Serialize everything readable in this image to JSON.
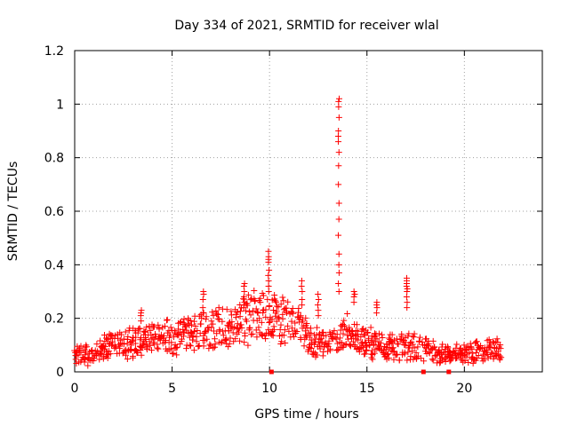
{
  "chart_data": {
    "type": "scatter",
    "title": "Day 334 of 2021, SRMTID for receiver wlal",
    "xlabel": "GPS time / hours",
    "ylabel": "SRMTID / TECUs",
    "xlim": [
      0,
      24
    ],
    "ylim": [
      0,
      1.2
    ],
    "xticks": [
      0,
      5,
      10,
      15,
      20
    ],
    "xtick_labels": [
      "0",
      "5",
      "10",
      "15",
      "20"
    ],
    "yticks": [
      0,
      0.2,
      0.4,
      0.6,
      0.8,
      1,
      1.2
    ],
    "ytick_labels": [
      "0",
      "0.2",
      "0.4",
      "0.6",
      "0.8",
      "1",
      "1.2"
    ],
    "grid": true,
    "marker": "+",
    "color": "#ff0000",
    "series": [
      {
        "name": "SRMTID",
        "envelope_hours": [
          0,
          1,
          2,
          3,
          4,
          5,
          6,
          7,
          8,
          9,
          10,
          11,
          12,
          13,
          13.5,
          14,
          15,
          16,
          17,
          18,
          19,
          20,
          21,
          22
        ],
        "baseline_tecu": [
          0.06,
          0.07,
          0.1,
          0.11,
          0.13,
          0.13,
          0.15,
          0.16,
          0.17,
          0.2,
          0.2,
          0.18,
          0.13,
          0.1,
          0.12,
          0.16,
          0.11,
          0.09,
          0.1,
          0.08,
          0.06,
          0.07,
          0.08,
          0.09
        ],
        "spikes": [
          {
            "x": 13.55,
            "y": [
              1.02,
              1.01,
              0.99,
              0.95,
              0.9,
              0.88,
              0.86,
              0.82,
              0.77,
              0.7,
              0.63,
              0.57,
              0.51,
              0.44,
              0.4,
              0.37,
              0.33,
              0.3
            ]
          },
          {
            "x": 9.95,
            "y": [
              0.45,
              0.43,
              0.42,
              0.41,
              0.38,
              0.36,
              0.34,
              0.32,
              0.3
            ]
          },
          {
            "x": 17.05,
            "y": [
              0.35,
              0.34,
              0.33,
              0.32,
              0.31,
              0.3,
              0.28,
              0.26,
              0.24
            ]
          },
          {
            "x": 6.6,
            "y": [
              0.3,
              0.29,
              0.27,
              0.24,
              0.22
            ]
          },
          {
            "x": 8.7,
            "y": [
              0.33,
              0.32,
              0.3,
              0.28,
              0.26,
              0.24
            ]
          },
          {
            "x": 11.65,
            "y": [
              0.34,
              0.32,
              0.3,
              0.27,
              0.25
            ]
          },
          {
            "x": 12.5,
            "y": [
              0.29,
              0.27,
              0.25,
              0.23,
              0.21
            ]
          },
          {
            "x": 15.5,
            "y": [
              0.26,
              0.25,
              0.24,
              0.22
            ]
          },
          {
            "x": 3.4,
            "y": [
              0.23,
              0.22,
              0.21,
              0.19
            ]
          },
          {
            "x": 14.35,
            "y": [
              0.3,
              0.29,
              0.28,
              0.26
            ]
          }
        ],
        "zero_points": [
          10.1,
          17.9,
          19.2
        ]
      }
    ]
  }
}
